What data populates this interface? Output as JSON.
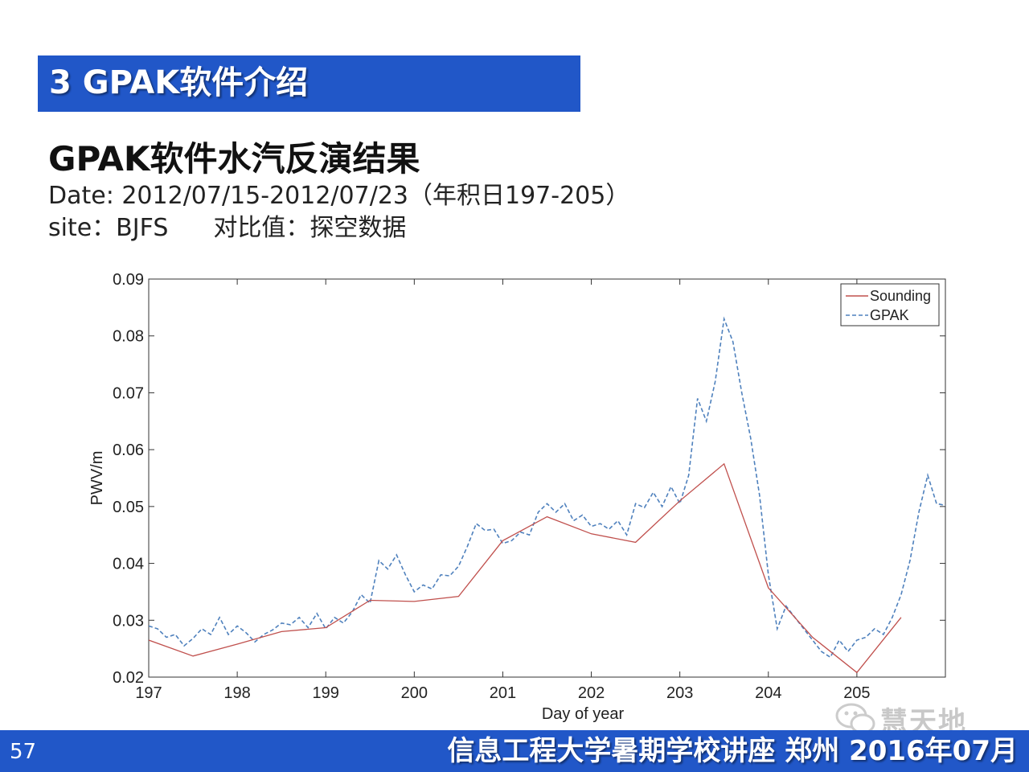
{
  "slide": {
    "section_title": "3 GPAK软件介绍",
    "heading": "GPAK软件水汽反演结果",
    "date_line": "Date: 2012/07/15-2012/07/23（年积日197-205）",
    "site_label": "site：BJFS",
    "compare_label": "对比值：探空数据",
    "page_number": "57",
    "footer_text": "信息工程大学暑期学校讲座  郑州  2016年07月",
    "watermark_text": "慧天地",
    "colors": {
      "band": "#2157c8",
      "sounding": "#c0504d",
      "gpak": "#4f81bd"
    }
  },
  "chart_data": {
    "type": "line",
    "title": "",
    "xlabel": "Day of year",
    "ylabel": "PWV/m",
    "xlim": [
      197,
      206
    ],
    "ylim": [
      0.02,
      0.09
    ],
    "xticks": [
      197,
      198,
      199,
      200,
      201,
      202,
      203,
      204,
      205
    ],
    "xtick_labels": [
      "197",
      "198",
      "199",
      "200",
      "201",
      "202",
      "203",
      "204",
      "205"
    ],
    "yticks": [
      0.02,
      0.03,
      0.04,
      0.05,
      0.06,
      0.07,
      0.08,
      0.09
    ],
    "ytick_labels": [
      "0.02",
      "0.03",
      "0.04",
      "0.05",
      "0.06",
      "0.07",
      "0.08",
      "0.09"
    ],
    "legend_position": "top-right",
    "grid": false,
    "series": [
      {
        "name": "Sounding",
        "style": "solid",
        "x": [
          197.0,
          197.5,
          198.0,
          198.5,
          199.0,
          199.5,
          200.0,
          200.5,
          201.0,
          201.5,
          202.0,
          202.5,
          203.0,
          203.5,
          204.0,
          204.5,
          205.0,
          205.5
        ],
        "y": [
          0.0265,
          0.0237,
          0.0258,
          0.028,
          0.0287,
          0.0335,
          0.0333,
          0.0342,
          0.044,
          0.0482,
          0.0452,
          0.0437,
          0.051,
          0.0575,
          0.0357,
          0.027,
          0.0208,
          0.0305
        ]
      },
      {
        "name": "GPAK",
        "style": "dashed",
        "x": [
          197.0,
          197.1,
          197.2,
          197.3,
          197.4,
          197.5,
          197.6,
          197.7,
          197.8,
          197.9,
          198.0,
          198.1,
          198.2,
          198.3,
          198.4,
          198.5,
          198.6,
          198.7,
          198.8,
          198.9,
          199.0,
          199.1,
          199.2,
          199.3,
          199.4,
          199.5,
          199.6,
          199.7,
          199.8,
          199.9,
          200.0,
          200.1,
          200.2,
          200.3,
          200.4,
          200.5,
          200.6,
          200.7,
          200.8,
          200.9,
          201.0,
          201.1,
          201.2,
          201.3,
          201.4,
          201.5,
          201.6,
          201.7,
          201.8,
          201.9,
          202.0,
          202.1,
          202.2,
          202.3,
          202.4,
          202.5,
          202.6,
          202.7,
          202.8,
          202.9,
          203.0,
          203.1,
          203.2,
          203.3,
          203.4,
          203.5,
          203.6,
          203.7,
          203.8,
          203.9,
          204.0,
          204.1,
          204.2,
          204.3,
          204.4,
          204.5,
          204.6,
          204.7,
          204.8,
          204.9,
          205.0,
          205.1,
          205.2,
          205.3,
          205.4,
          205.5,
          205.6,
          205.7,
          205.8,
          205.9,
          206.0
        ],
        "y": [
          0.029,
          0.0285,
          0.027,
          0.0275,
          0.0255,
          0.0268,
          0.0285,
          0.0275,
          0.0305,
          0.0275,
          0.029,
          0.0278,
          0.0262,
          0.0275,
          0.0283,
          0.0295,
          0.0292,
          0.0305,
          0.0287,
          0.0312,
          0.0285,
          0.0305,
          0.0295,
          0.0315,
          0.0345,
          0.033,
          0.0405,
          0.039,
          0.0415,
          0.038,
          0.035,
          0.0362,
          0.0355,
          0.038,
          0.0378,
          0.0395,
          0.043,
          0.047,
          0.0458,
          0.046,
          0.0435,
          0.044,
          0.0455,
          0.045,
          0.049,
          0.0505,
          0.049,
          0.0505,
          0.0475,
          0.0485,
          0.0465,
          0.047,
          0.046,
          0.0475,
          0.045,
          0.0505,
          0.0498,
          0.0525,
          0.05,
          0.0535,
          0.0505,
          0.0555,
          0.069,
          0.065,
          0.072,
          0.083,
          0.079,
          0.07,
          0.062,
          0.052,
          0.038,
          0.0285,
          0.0325,
          0.0305,
          0.0285,
          0.0265,
          0.0245,
          0.0235,
          0.0265,
          0.0245,
          0.0265,
          0.027,
          0.0285,
          0.0275,
          0.0305,
          0.0345,
          0.0405,
          0.049,
          0.0555,
          0.0505,
          0.0502
        ]
      }
    ]
  }
}
